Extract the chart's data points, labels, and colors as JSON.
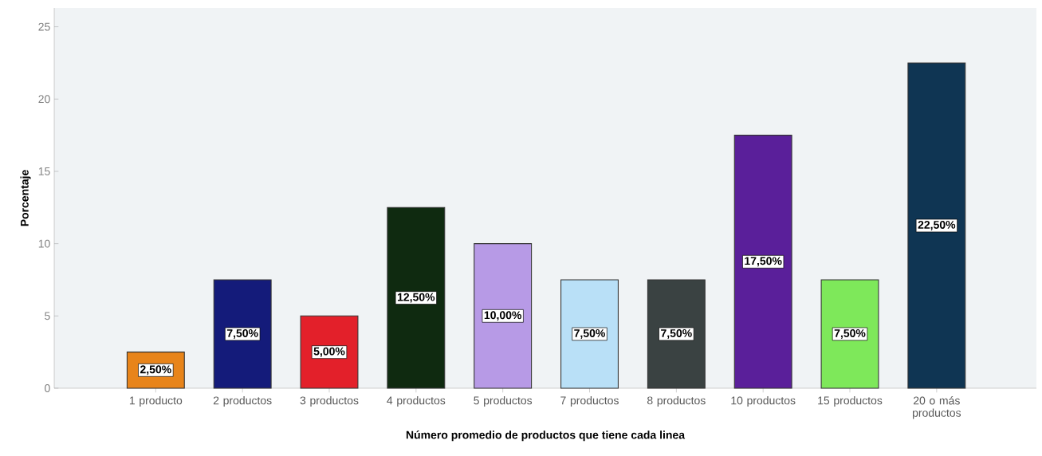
{
  "chart_data": {
    "type": "bar",
    "xlabel": "Número promedio de productos que tiene cada linea",
    "ylabel": "Porcentaje",
    "categories": [
      "1 producto",
      "2 productos",
      "3 productos",
      "4 productos",
      "5 productos",
      "7 productos",
      "8 productos",
      "10 productos",
      "15 productos",
      "20 o más productos"
    ],
    "values": [
      2.5,
      7.5,
      5,
      12.5,
      10,
      7.5,
      7.5,
      17.5,
      7.5,
      22.5
    ],
    "colors": [
      "#e8841a",
      "#141b7a",
      "#e3202a",
      "#0f2a10",
      "#b79ae6",
      "#b9e0f7",
      "#3a4242",
      "#5a1f9a",
      "#7ee85a",
      "#0f3553"
    ],
    "value_labels": [
      "2,50%",
      "7,50%",
      "5,00%",
      "12,50%",
      "10,00%",
      "7,50%",
      "7,50%",
      "17,50%",
      "7,50%",
      "22,50%"
    ],
    "ylim": [
      0,
      26.3
    ],
    "yticks": [
      0,
      5,
      10,
      15,
      20,
      25
    ]
  }
}
